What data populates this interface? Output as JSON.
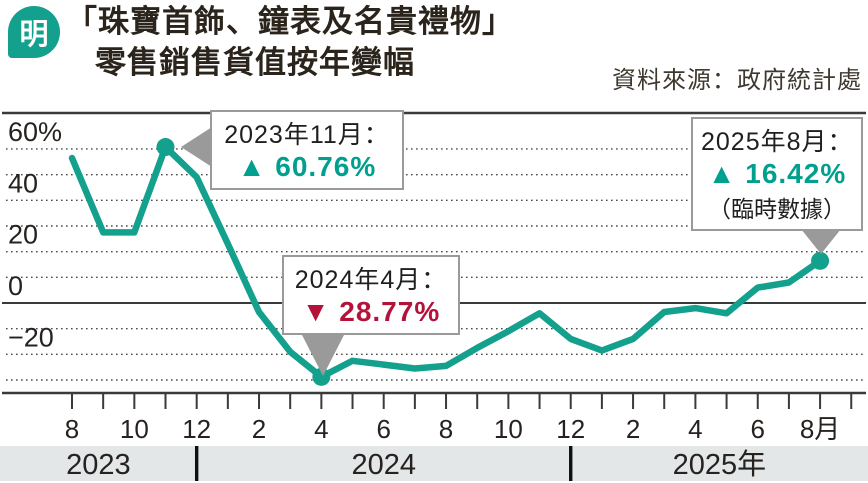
{
  "header": {
    "logo_char": "明",
    "title_line1": "「珠寶首飾、鐘表及名貴禮物」",
    "title_line2": "零售銷售貨值按年變幅",
    "source": "資料來源：政府統計處"
  },
  "colors": {
    "teal": "#13a08d",
    "teal_text": "#00a08e",
    "crimson": "#b5123a",
    "pointer_gray": "#9a9a9a",
    "band_bg": "#e3e7e8",
    "axis_dark": "#3a3a3a",
    "grid_dot": "#4b4b4b",
    "text_dark": "#262220"
  },
  "chart_data": {
    "type": "line",
    "title": "「珠寶首飾、鐘表及名貴禮物」零售銷售貨值按年變幅",
    "source": "資料來源：政府統計處",
    "unit": "%",
    "months": [
      "2023-08",
      "2023-09",
      "2023-10",
      "2023-11",
      "2023-12",
      "2024-01",
      "2024-02",
      "2024-03",
      "2024-04",
      "2024-05",
      "2024-06",
      "2024-07",
      "2024-08",
      "2024-09",
      "2024-10",
      "2024-11",
      "2024-12",
      "2025-01",
      "2025-02",
      "2025-03",
      "2025-04",
      "2025-05",
      "2025-06",
      "2025-07",
      "2025-08"
    ],
    "series": [
      {
        "name": "零售銷售貨值按年變幅 (%)",
        "values": [
          56.5,
          27.5,
          27.5,
          60.76,
          49,
          23,
          -3.5,
          -19,
          -28.77,
          -22.5,
          -24,
          -25.5,
          -24.5,
          -17.5,
          -11,
          -4,
          -14,
          -18.5,
          -14,
          -3.5,
          -2,
          -4,
          6,
          8,
          16.42
        ]
      }
    ],
    "ylim": [
      -36,
      74
    ],
    "grid": "dotted horizontal every 10, solid line at 0",
    "legend": "none",
    "y_ticks": [
      {
        "value": 60,
        "label": "60%"
      },
      {
        "value": 40,
        "label": "40"
      },
      {
        "value": 20,
        "label": "20"
      },
      {
        "value": 0,
        "label": "0"
      },
      {
        "value": -20,
        "label": "−20"
      }
    ],
    "dotted_gridlines": [
      60,
      50,
      40,
      30,
      20,
      10,
      -10,
      -20,
      -30
    ],
    "x_tick_labels": [
      "8",
      "10",
      "12",
      "2",
      "4",
      "6",
      "8",
      "10",
      "12",
      "2",
      "4",
      "6",
      "8月"
    ],
    "year_bands": {
      "labels": [
        "2023",
        "2024",
        "2025年"
      ],
      "dividers_at": [
        "2023-12",
        "2024-12"
      ]
    },
    "annotations": [
      {
        "month": "2023-11",
        "value": 60.76,
        "date_label": "2023年11月：",
        "value_label": "▲ 60.76%",
        "direction": "up",
        "note": ""
      },
      {
        "month": "2024-04",
        "value": -28.77,
        "date_label": "2024年4月：",
        "value_label": "▼ 28.77%",
        "direction": "down",
        "note": ""
      },
      {
        "month": "2025-08",
        "value": 16.42,
        "date_label": "2025年8月：",
        "value_label": "▲ 16.42%",
        "direction": "up",
        "note": "（臨時數據）"
      }
    ]
  }
}
